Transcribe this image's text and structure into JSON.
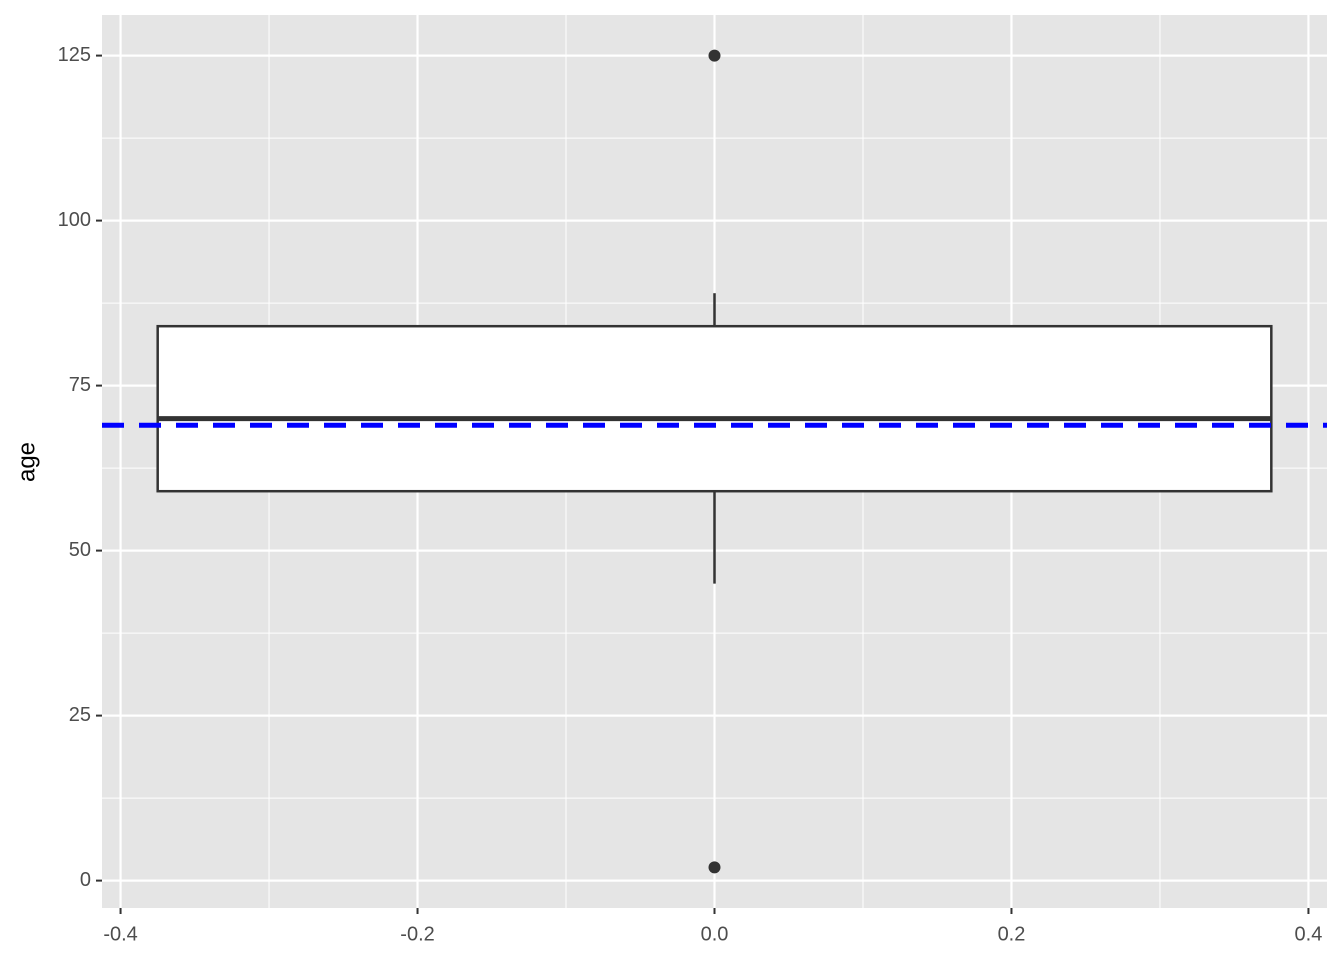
{
  "chart_data": {
    "type": "boxplot",
    "y_label": "age",
    "box": {
      "x": 0,
      "width": 0.75,
      "q1": 59,
      "median": 70,
      "q3": 84,
      "whisker_low": 45,
      "whisker_high": 89,
      "outliers": [
        125,
        2
      ]
    },
    "hline": {
      "value": 69,
      "color": "#0000ff",
      "linetype": "dashed"
    },
    "xlim": [
      -0.4125,
      0.4125
    ],
    "xticks": [
      -0.4,
      -0.2,
      {
        "value": 0,
        "label": "0.0"
      },
      0.2,
      0.4
    ],
    "ylim": [
      -4.15,
      131.15
    ],
    "yticks": [
      0,
      25,
      50,
      75,
      100,
      125
    ],
    "grid": true,
    "box_fill": "#ffffff",
    "box_color": "#333333"
  }
}
